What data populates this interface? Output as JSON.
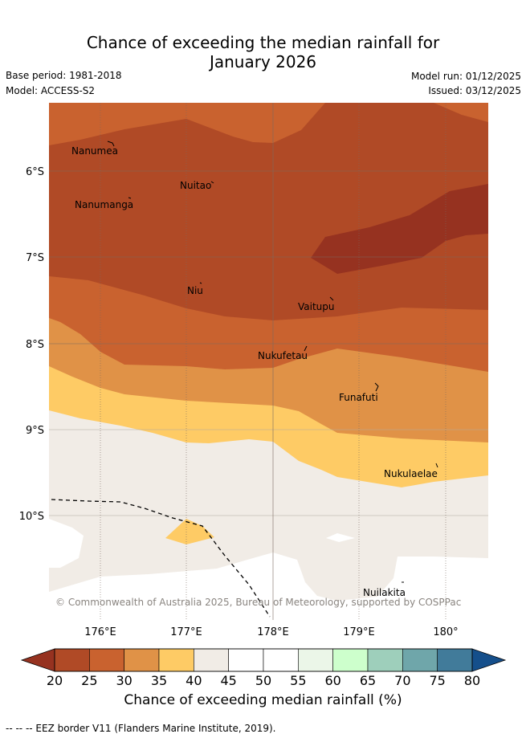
{
  "title": {
    "line1": "Chance of exceeding the median rainfall for",
    "line2": "January 2026"
  },
  "meta": {
    "base_period": "Base period: 1981-2018",
    "model": "Model: ACCESS-S2",
    "model_run": "Model run: 01/12/2025",
    "issued": "Issued: 03/12/2025"
  },
  "map": {
    "lat_labels": [
      "6°S",
      "7°S",
      "8°S",
      "9°S",
      "10°S"
    ],
    "lon_labels": [
      "176°E",
      "177°E",
      "178°E",
      "179°E",
      "180°"
    ],
    "places": [
      "Nanumea",
      "Nuitao",
      "Nanumanga",
      "Niu",
      "Vaitupu",
      "Nukufetau",
      "Funafuti",
      "Nukulaelae",
      "Nuilakita"
    ],
    "copyright": "© Commonwealth of Australia 2025, Bureau of Meteorology, supported by COSPPac"
  },
  "colorbar": {
    "ticks": [
      "20",
      "25",
      "30",
      "35",
      "40",
      "45",
      "50",
      "55",
      "60",
      "65",
      "70",
      "75",
      "80"
    ],
    "colors": [
      "#b04a26",
      "#c9622f",
      "#e09247",
      "#fecb65",
      "#f1ece6",
      "#ffffff",
      "#ffffff",
      "#ebf6e8",
      "#cdffcc",
      "#9ecfbb",
      "#6fa6aa",
      "#417b9a"
    ],
    "under_color": "#963220",
    "over_color": "#154f8b",
    "title": "Chance of exceeding median rainfall (%)"
  },
  "legend": {
    "eez_note": "--  --  -- EEZ border V11 (Flanders Marine Institute, 2019)."
  }
}
